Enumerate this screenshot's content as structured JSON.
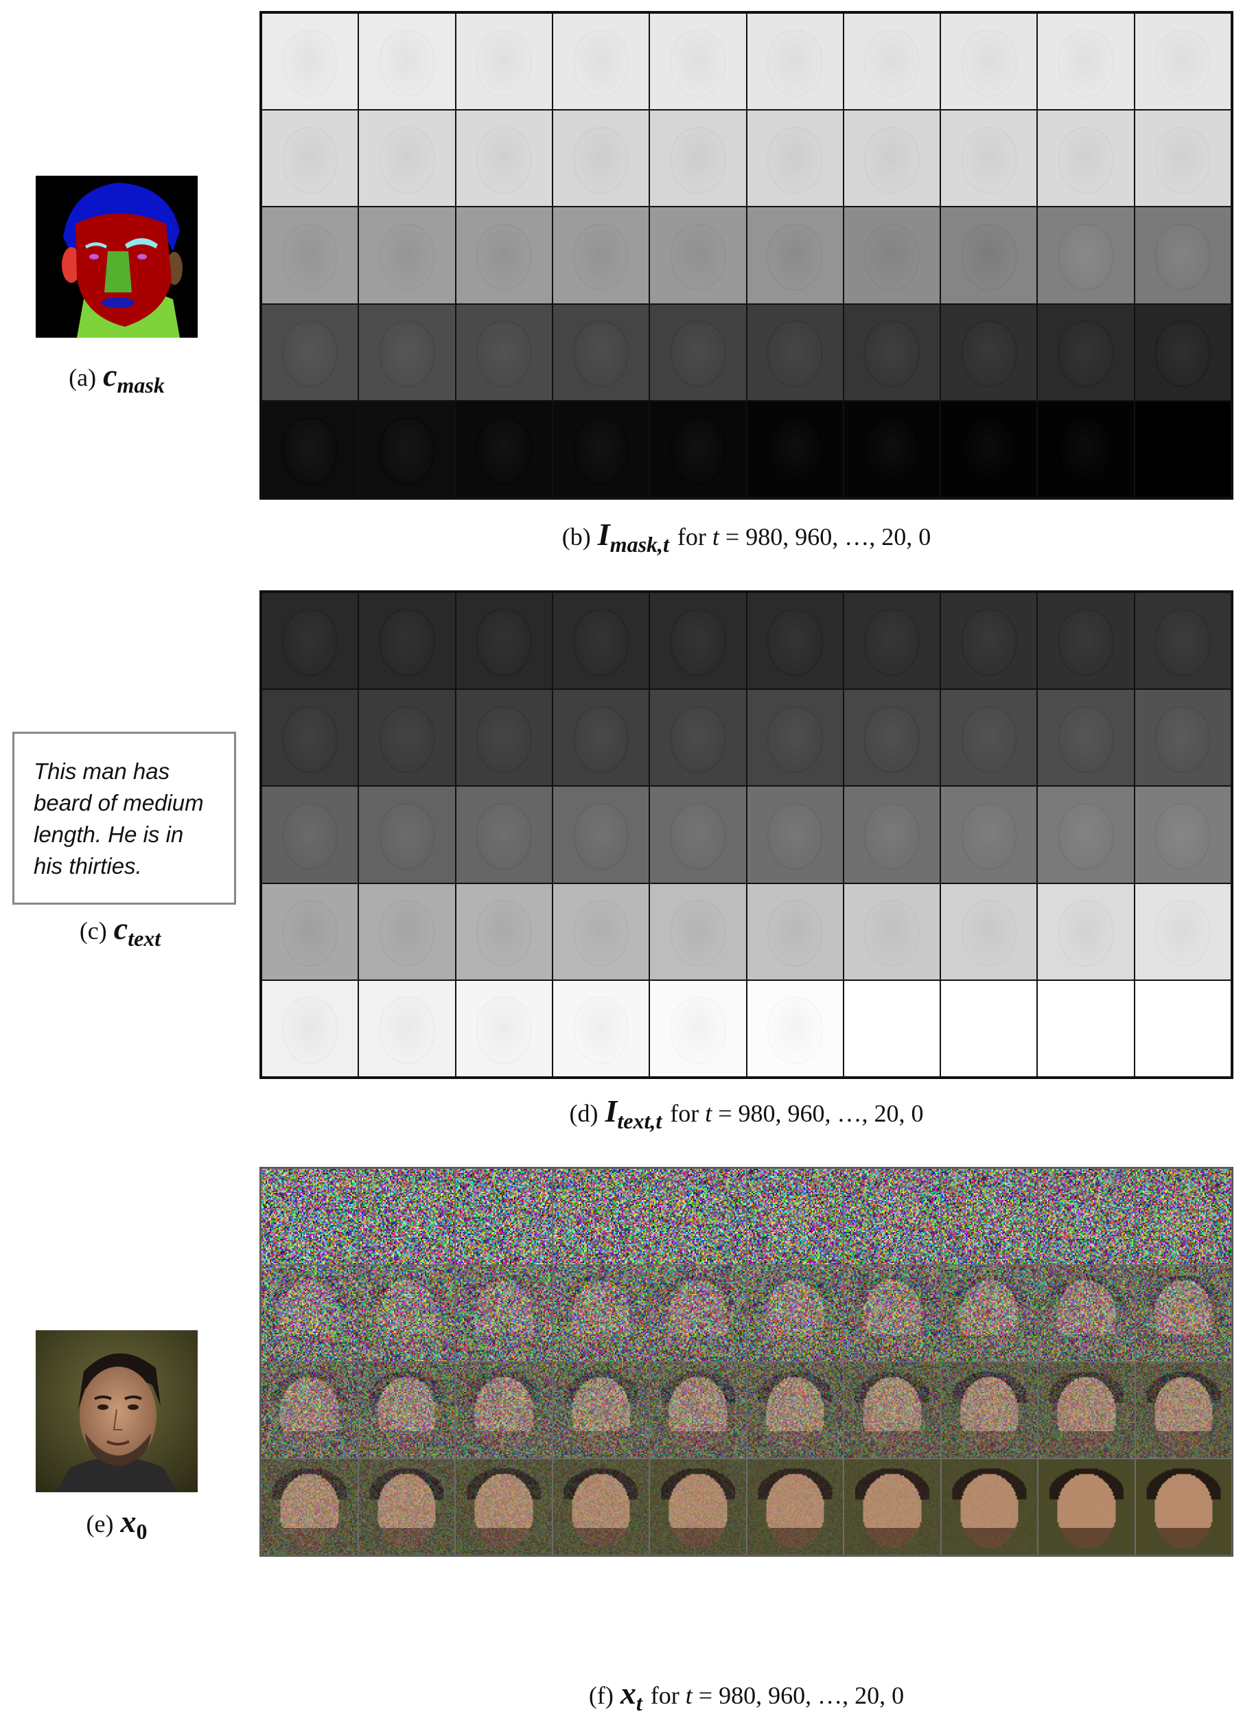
{
  "panel_a": {
    "label": "(a)",
    "symbol": "c",
    "subscript": "mask"
  },
  "panel_b": {
    "label": "(b)",
    "symbol": "I",
    "subscript": "mask,t",
    "for_text": "for",
    "t_var": "t",
    "t_values": " = 980, 960, …, 20, 0"
  },
  "panel_c": {
    "label": "(c)",
    "symbol": "c",
    "subscript": "text",
    "text_lines": [
      "This man has",
      "beard of medium",
      "length. He is in",
      "his thirties."
    ]
  },
  "panel_d": {
    "label": "(d)",
    "symbol": "I",
    "subscript": "text,t",
    "for_text": "for",
    "t_var": "t",
    "t_values": " = 980, 960, …, 20, 0"
  },
  "panel_e": {
    "label": "(e)",
    "symbol": "x",
    "subscript": "0"
  },
  "panel_f": {
    "label": "(f)",
    "symbol": "x",
    "subscript": "t",
    "for_text": "for",
    "t_var": "t",
    "t_values": " = 980, 960, …, 20, 0"
  },
  "colors": {
    "mask_background": "#000000",
    "mask_hair": "#0a14c8",
    "mask_face": "#a80000",
    "mask_nose": "#55b030",
    "mask_neck": "#7ed23a",
    "mask_ear_left": "#e03a32",
    "mask_ear_right": "#6b4a2a",
    "mask_brow": "#8fe8f0",
    "mask_lips": "#1a1ab0",
    "photo_background": "#4a4a28",
    "photo_skin": "#b68a6a",
    "photo_hair": "#241a14"
  },
  "grid_mask_rows_gray": [
    [
      0.92,
      0.92,
      0.91,
      0.91,
      0.91,
      0.9,
      0.9,
      0.9,
      0.91,
      0.9
    ],
    [
      0.85,
      0.85,
      0.85,
      0.84,
      0.84,
      0.84,
      0.84,
      0.85,
      0.85,
      0.85
    ],
    [
      0.62,
      0.62,
      0.61,
      0.61,
      0.6,
      0.58,
      0.55,
      0.52,
      0.5,
      0.48
    ],
    [
      0.3,
      0.3,
      0.29,
      0.27,
      0.26,
      0.24,
      0.21,
      0.19,
      0.17,
      0.15
    ],
    [
      0.05,
      0.05,
      0.04,
      0.04,
      0.03,
      0.02,
      0.02,
      0.01,
      0.01,
      0.0
    ]
  ],
  "grid_text_rows_gray": [
    [
      0.16,
      0.16,
      0.16,
      0.17,
      0.17,
      0.17,
      0.18,
      0.19,
      0.19,
      0.2
    ],
    [
      0.22,
      0.23,
      0.24,
      0.25,
      0.26,
      0.27,
      0.28,
      0.29,
      0.3,
      0.32
    ],
    [
      0.38,
      0.39,
      0.4,
      0.41,
      0.42,
      0.43,
      0.44,
      0.46,
      0.48,
      0.49
    ],
    [
      0.66,
      0.68,
      0.7,
      0.72,
      0.74,
      0.76,
      0.79,
      0.82,
      0.86,
      0.89
    ],
    [
      0.94,
      0.95,
      0.96,
      0.97,
      0.98,
      0.99,
      1.0,
      1.0,
      1.0,
      1.0
    ]
  ]
}
